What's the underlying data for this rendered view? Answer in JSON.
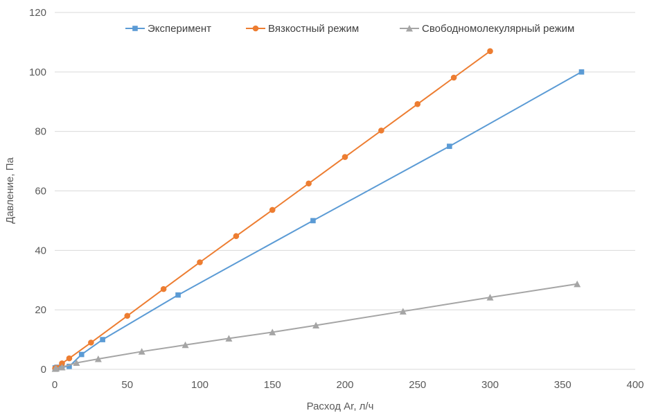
{
  "chart_data": {
    "type": "line",
    "title": "",
    "xlabel": "Расход Ar, л/ч",
    "ylabel": "Давление, Па",
    "xlim": [
      0,
      400
    ],
    "ylim": [
      0,
      120
    ],
    "x_ticks": [
      "0",
      "50",
      "100",
      "150",
      "200",
      "250",
      "300",
      "350",
      "400"
    ],
    "y_ticks": [
      "0",
      "20",
      "40",
      "60",
      "80",
      "100",
      "120"
    ],
    "grid": "horizontal",
    "legend_position": "top",
    "series": [
      {
        "name": "Эксперимент",
        "color": "#5b9bd5",
        "marker": "square",
        "points": [
          [
            0.3,
            0.5
          ],
          [
            1.5,
            0.7
          ],
          [
            5,
            0.8
          ],
          [
            10,
            1.0
          ],
          [
            18.5,
            5
          ],
          [
            33,
            10
          ],
          [
            85,
            25
          ],
          [
            178,
            50
          ],
          [
            272,
            75
          ],
          [
            363,
            100
          ]
        ]
      },
      {
        "name": "Вязкостный режим",
        "color": "#ed7d31",
        "marker": "circle",
        "points": [
          [
            0.3,
            0.3
          ],
          [
            1,
            0.5
          ],
          [
            5,
            2.0
          ],
          [
            10,
            3.7
          ],
          [
            25,
            9.0
          ],
          [
            50,
            18.0
          ],
          [
            75,
            27.0
          ],
          [
            100,
            36.0
          ],
          [
            125,
            44.8
          ],
          [
            150,
            53.6
          ],
          [
            175,
            62.5
          ],
          [
            200,
            71.4
          ],
          [
            225,
            80.3
          ],
          [
            250,
            89.2
          ],
          [
            275,
            98.1
          ],
          [
            300,
            107.0
          ]
        ]
      },
      {
        "name": "Свободномолекулярный режим",
        "color": "#a5a5a5",
        "marker": "triangle",
        "points": [
          [
            0.3,
            0.2
          ],
          [
            1,
            0.3
          ],
          [
            5,
            0.7
          ],
          [
            15,
            2.2
          ],
          [
            30,
            3.5
          ],
          [
            60,
            6.0
          ],
          [
            90,
            8.2
          ],
          [
            120,
            10.4
          ],
          [
            150,
            12.5
          ],
          [
            180,
            14.8
          ],
          [
            240,
            19.5
          ],
          [
            300,
            24.2
          ],
          [
            360,
            28.7
          ]
        ]
      }
    ]
  }
}
